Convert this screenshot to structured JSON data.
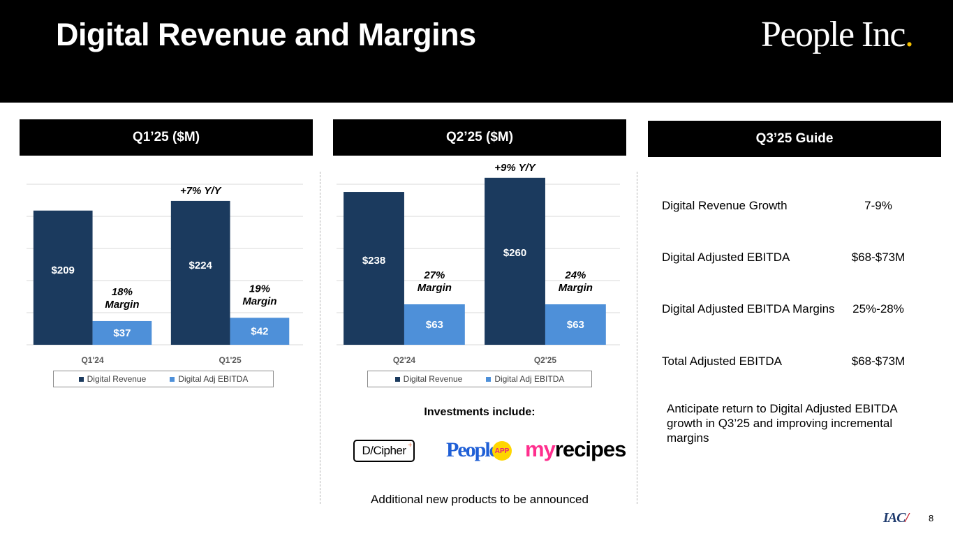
{
  "title": "Digital Revenue and Margins",
  "logo": {
    "text": "People Inc",
    "dot": "."
  },
  "colors": {
    "revenue": "#1b3a5e",
    "ebitda": "#4e90d9",
    "header": "#000000"
  },
  "panels": {
    "q1": "Q1’25 ($M)",
    "q2": "Q2’25 ($M)",
    "q3": "Q3’25 Guide"
  },
  "chart_data": [
    {
      "type": "bar",
      "title": "Q1’25 ($M)",
      "categories": [
        "Q1'24",
        "Q1'25"
      ],
      "series": [
        {
          "name": "Digital Revenue",
          "values": [
            209,
            224
          ],
          "labels": [
            "$209",
            "$224"
          ]
        },
        {
          "name": "Digital Adj EBITDA",
          "values": [
            37,
            42
          ],
          "labels": [
            "$37",
            "$42"
          ]
        }
      ],
      "ylim": [
        0,
        250
      ],
      "grid": true,
      "growth_annotation": "+7% Y/Y",
      "margin_annotations": [
        {
          "pct": "18%",
          "word": "Margin"
        },
        {
          "pct": "19%",
          "word": "Margin"
        }
      ],
      "legend": [
        "Digital Revenue",
        "Digital Adj EBITDA"
      ]
    },
    {
      "type": "bar",
      "title": "Q2’25 ($M)",
      "categories": [
        "Q2'24",
        "Q2'25"
      ],
      "series": [
        {
          "name": "Digital Revenue",
          "values": [
            238,
            260
          ],
          "labels": [
            "$238",
            "$260"
          ]
        },
        {
          "name": "Digital Adj EBITDA",
          "values": [
            63,
            63
          ],
          "labels": [
            "$63",
            "$63"
          ]
        }
      ],
      "ylim": [
        0,
        250
      ],
      "grid": true,
      "growth_annotation": "+9% Y/Y",
      "margin_annotations": [
        {
          "pct": "27%",
          "word": "Margin"
        },
        {
          "pct": "24%",
          "word": "Margin"
        }
      ],
      "legend": [
        "Digital Revenue",
        "Digital Adj EBITDA"
      ]
    }
  ],
  "guide": {
    "rows": [
      {
        "label": "Digital Revenue Growth",
        "value": "7-9%"
      },
      {
        "label": "Digital Adjusted EBITDA",
        "value": "$68-$73M"
      },
      {
        "label": "Digital Adjusted EBITDA Margins",
        "value": "25%-28%"
      },
      {
        "label": "Total Adjusted EBITDA",
        "value": "$68-$73M"
      }
    ],
    "note": "Anticipate return to Digital Adjusted EBITDA growth in Q3’25 and improving incremental margins"
  },
  "investments": {
    "heading": "Investments include:",
    "logos": {
      "dcipher": "D/Cipher",
      "dcipher_plus": "+",
      "people": "People",
      "app": "APP",
      "my": "my",
      "recipes": "recipes"
    },
    "footer": "Additional new products to be announced"
  },
  "footer": {
    "iac": "IAC",
    "iac_accent": "/",
    "page": "8"
  }
}
